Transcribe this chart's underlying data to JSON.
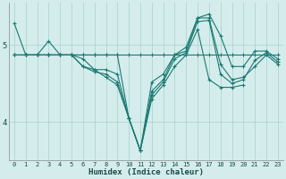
{
  "xlabel": "Humidex (Indice chaleur)",
  "bg_color": "#d4edec",
  "grid_color": "#b0d4d0",
  "line_color": "#1a7a72",
  "xlim": [
    -0.5,
    23.5
  ],
  "ylim": [
    3.5,
    5.55
  ],
  "yticks": [
    4,
    5
  ],
  "xticks": [
    0,
    1,
    2,
    3,
    4,
    5,
    6,
    7,
    8,
    9,
    10,
    11,
    12,
    13,
    14,
    15,
    16,
    17,
    18,
    19,
    20,
    21,
    22,
    23
  ],
  "lines": [
    {
      "x": [
        0,
        1,
        2,
        3,
        4,
        5,
        6,
        7,
        8,
        9,
        10,
        11,
        12,
        13,
        14,
        15,
        16,
        17,
        18,
        19,
        20,
        21,
        22,
        23
      ],
      "y": [
        5.28,
        4.87,
        4.87,
        4.87,
        4.87,
        4.87,
        4.87,
        4.87,
        4.87,
        4.87,
        4.05,
        3.63,
        4.52,
        4.62,
        4.87,
        4.97,
        5.35,
        5.4,
        5.12,
        4.72,
        4.72,
        4.92,
        4.92,
        4.82
      ]
    },
    {
      "x": [
        0,
        1,
        2,
        3,
        4,
        5,
        6,
        7,
        8,
        9,
        10,
        11,
        12,
        13,
        14,
        15,
        16,
        17,
        18,
        19,
        20,
        21,
        22,
        23
      ],
      "y": [
        4.87,
        4.87,
        4.87,
        5.05,
        4.87,
        4.87,
        4.72,
        4.68,
        4.68,
        4.62,
        4.05,
        3.63,
        4.4,
        4.55,
        4.87,
        4.92,
        5.35,
        5.35,
        4.75,
        4.55,
        4.58,
        4.72,
        4.87,
        4.75
      ]
    },
    {
      "x": [
        0,
        1,
        2,
        3,
        4,
        5,
        6,
        7,
        8,
        9,
        10,
        11,
        12,
        13,
        14,
        15,
        16,
        17,
        18,
        19,
        20,
        21,
        22,
        23
      ],
      "y": [
        4.87,
        4.87,
        4.87,
        4.87,
        4.87,
        4.87,
        4.72,
        4.65,
        4.62,
        4.52,
        4.05,
        3.63,
        4.35,
        4.52,
        4.82,
        4.9,
        5.3,
        5.32,
        4.62,
        4.5,
        4.55,
        4.8,
        4.9,
        4.78
      ]
    },
    {
      "x": [
        1,
        2,
        3,
        4,
        5,
        6,
        7,
        8,
        9,
        10,
        11,
        12,
        13,
        14,
        15,
        16,
        17,
        18,
        19,
        20
      ],
      "y": [
        4.87,
        4.87,
        4.87,
        4.87,
        4.87,
        4.82,
        4.68,
        4.58,
        4.48,
        4.05,
        3.63,
        4.3,
        4.48,
        4.72,
        4.87,
        5.2,
        4.55,
        4.45,
        4.45,
        4.48
      ]
    },
    {
      "x": [
        0,
        1,
        2,
        3,
        4,
        5,
        6,
        7,
        8,
        9,
        10,
        11,
        12,
        13,
        14,
        15,
        16,
        17,
        18,
        19,
        20,
        21,
        22,
        23
      ],
      "y": [
        4.87,
        4.87,
        4.87,
        4.87,
        4.87,
        4.87,
        4.87,
        4.87,
        4.87,
        4.87,
        4.87,
        4.87,
        4.87,
        4.87,
        4.87,
        4.87,
        4.87,
        4.87,
        4.87,
        4.87,
        4.87,
        4.87,
        4.87,
        4.87
      ]
    }
  ]
}
